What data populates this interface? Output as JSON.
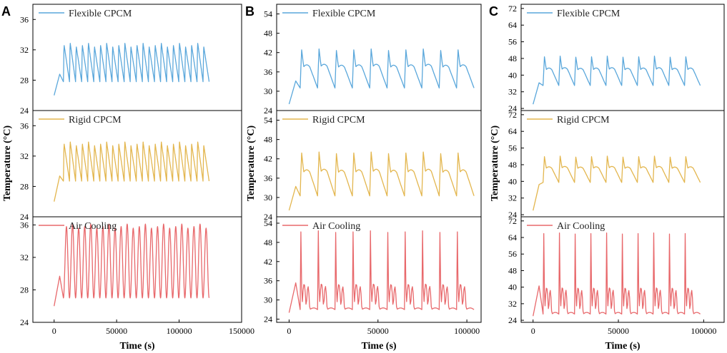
{
  "chart_data": [
    {
      "type": "line",
      "panel": "A",
      "xlabel": "Time (s)",
      "ylabel": "Temperature (°C)",
      "xlim": [
        -17000,
        150000
      ],
      "xticks": [
        0,
        50000,
        100000,
        150000
      ],
      "x_end": 124000,
      "series": [
        {
          "name": "Flexible CPCM",
          "color": "#5aa7db",
          "ylim": [
            24,
            38
          ],
          "yticks": [
            24,
            28,
            32,
            36
          ],
          "start": 26,
          "cycles": 24,
          "lo": 27.8,
          "hi": 32.7,
          "shape": "saw"
        },
        {
          "name": "Rigid CPCM",
          "color": "#e3b64e",
          "ylim": [
            24,
            38
          ],
          "yticks": [
            24,
            28,
            32,
            36
          ],
          "start": 26,
          "cycles": 24,
          "lo": 28.7,
          "hi": 33.7,
          "shape": "saw"
        },
        {
          "name": "Air Cooling",
          "color": "#e8686b",
          "ylim": [
            24,
            37
          ],
          "yticks": [
            24,
            28,
            32,
            36
          ],
          "start": 26,
          "cycles": 24,
          "lo": 27.0,
          "hi": 35.8,
          "shape": "wave"
        }
      ]
    },
    {
      "type": "line",
      "panel": "B",
      "xlabel": "Time (s)",
      "ylabel": "Temperature (°C)",
      "xlim": [
        -7000,
        108000
      ],
      "xticks": [
        0,
        50000,
        100000
      ],
      "x_end": 104000,
      "series": [
        {
          "name": "Flexible CPCM",
          "color": "#5aa7db",
          "ylim": [
            24,
            57
          ],
          "yticks": [
            24,
            30,
            36,
            42,
            48,
            54
          ],
          "start": 26,
          "cycles": 10,
          "lo": 31,
          "hi": 43,
          "shape": "plateau"
        },
        {
          "name": "Rigid CPCM",
          "color": "#e3b64e",
          "ylim": [
            24,
            57
          ],
          "yticks": [
            24,
            30,
            36,
            42,
            48,
            54
          ],
          "start": 26,
          "cycles": 10,
          "lo": 30.5,
          "hi": 44,
          "shape": "plateau"
        },
        {
          "name": "Air Cooling",
          "color": "#e8686b",
          "ylim": [
            23,
            56
          ],
          "yticks": [
            24,
            30,
            36,
            42,
            48,
            54
          ],
          "start": 26,
          "cycles": 10,
          "lo": 27,
          "hi": 52,
          "shape": "spike"
        }
      ]
    },
    {
      "type": "line",
      "panel": "C",
      "xlabel": "Time (s)",
      "ylabel": "Temperature (°C)",
      "xlim": [
        -7000,
        112000
      ],
      "xticks": [
        0,
        50000,
        100000
      ],
      "x_end": 98000,
      "series": [
        {
          "name": "Flexible CPCM",
          "color": "#5aa7db",
          "ylim": [
            23,
            74
          ],
          "yticks": [
            24,
            32,
            40,
            48,
            56,
            64,
            72
          ],
          "start": 26,
          "cycles": 10,
          "lo": 35,
          "hi": 49,
          "shape": "plateau"
        },
        {
          "name": "Rigid CPCM",
          "color": "#e3b64e",
          "ylim": [
            23,
            74
          ],
          "yticks": [
            24,
            32,
            40,
            48,
            56,
            64,
            72
          ],
          "start": 26,
          "cycles": 10,
          "lo": 39.5,
          "hi": 52,
          "shape": "plateau"
        },
        {
          "name": "Air Cooling",
          "color": "#e8686b",
          "ylim": [
            23,
            74
          ],
          "yticks": [
            24,
            32,
            40,
            48,
            56,
            64,
            72
          ],
          "start": 26,
          "cycles": 10,
          "lo": 27,
          "hi": 67,
          "shape": "spike"
        }
      ]
    }
  ]
}
